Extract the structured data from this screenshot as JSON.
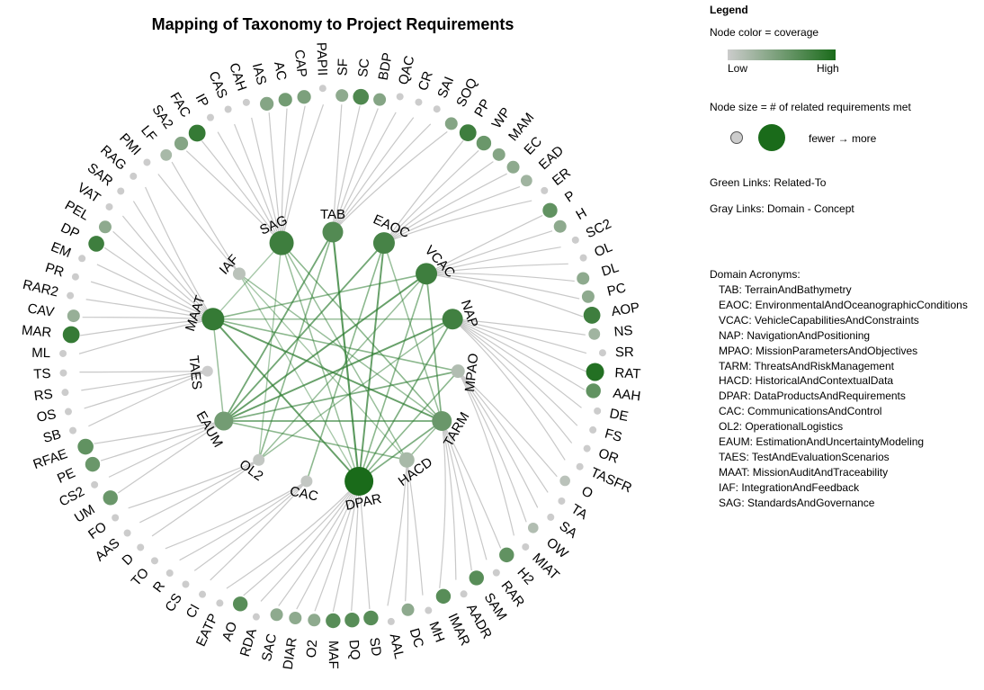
{
  "title": "Mapping of Taxonomy to Project Requirements",
  "legend": {
    "title": "Legend",
    "color_heading": "Node color = coverage",
    "low_label": "Low",
    "high_label": "High",
    "size_heading": "Node size = # of related requirements met",
    "size_arrow_text": "fewer → more",
    "green_links_text": "Green Links: Related-To",
    "gray_links_text": "Gray Links: Domain - Concept",
    "acronyms_heading": "Domain Acronyms:",
    "acronyms": [
      "TAB: TerrainAndBathymetry",
      "EAOC: EnvironmentalAndOceanographicConditions",
      "VCAC: VehicleCapabilitiesAndConstraints",
      "NAP: NavigationAndPositioning",
      "MPAO: MissionParametersAndObjectives",
      "TARM: ThreatsAndRiskManagement",
      "HACD: HistoricalAndContextualData",
      "DPAR: DataProductsAndRequirements",
      "CAC: CommunicationsAndControl",
      "OL2: OperationalLogistics",
      "EAUM: EstimationAndUncertaintyModeling",
      "TAES: TestAndEvaluationScenarios",
      "MAAT: MissionAuditAndTraceability",
      "IAF: IntegrationAndFeedback",
      "SAG: StandardsAndGovernance"
    ]
  },
  "colors": {
    "low": "#cccccc",
    "high": "#1a6b1a",
    "gray_link": "#c8c8c8",
    "green_link": "#2e7d32"
  },
  "domains": [
    {
      "id": "TAB",
      "coverage": 0.68,
      "size": 0.55
    },
    {
      "id": "EAOC",
      "coverage": 0.75,
      "size": 0.6
    },
    {
      "id": "VCAC",
      "coverage": 0.8,
      "size": 0.6
    },
    {
      "id": "NAP",
      "coverage": 0.78,
      "size": 0.55
    },
    {
      "id": "MPAO",
      "coverage": 0.15,
      "size": 0.15
    },
    {
      "id": "TARM",
      "coverage": 0.55,
      "size": 0.5
    },
    {
      "id": "HACD",
      "coverage": 0.2,
      "size": 0.25
    },
    {
      "id": "DPAR",
      "coverage": 1.0,
      "size": 1.0
    },
    {
      "id": "CAC",
      "coverage": 0.05,
      "size": 0.05
    },
    {
      "id": "OL2",
      "coverage": 0.05,
      "size": 0.05
    },
    {
      "id": "EAUM",
      "coverage": 0.5,
      "size": 0.45
    },
    {
      "id": "TAES",
      "coverage": 0.0,
      "size": 0.0
    },
    {
      "id": "MAAT",
      "coverage": 0.85,
      "size": 0.65
    },
    {
      "id": "IAF",
      "coverage": 0.1,
      "size": 0.1
    },
    {
      "id": "SAG",
      "coverage": 0.8,
      "size": 0.75
    }
  ],
  "concepts": [
    {
      "domain": "TAB",
      "items": [
        {
          "id": "SF",
          "coverage": 0.35,
          "size": 0.25
        },
        {
          "id": "SC",
          "coverage": 0.7,
          "size": 0.4
        },
        {
          "id": "BDP",
          "coverage": 0.4,
          "size": 0.25
        },
        {
          "id": "QAC",
          "coverage": 0,
          "size": 0
        },
        {
          "id": "CR",
          "coverage": 0,
          "size": 0
        },
        {
          "id": "SAI",
          "coverage": 0,
          "size": 0
        },
        {
          "id": "SOQ",
          "coverage": 0.4,
          "size": 0.25
        }
      ]
    },
    {
      "domain": "EAOC",
      "items": [
        {
          "id": "PP",
          "coverage": 0.8,
          "size": 0.45
        },
        {
          "id": "WP",
          "coverage": 0.55,
          "size": 0.35
        },
        {
          "id": "MAM",
          "coverage": 0.4,
          "size": 0.25
        },
        {
          "id": "EC",
          "coverage": 0.35,
          "size": 0.25
        },
        {
          "id": "EAD",
          "coverage": 0.25,
          "size": 0.2
        },
        {
          "id": "ER",
          "coverage": 0,
          "size": 0
        }
      ]
    },
    {
      "domain": "VCAC",
      "items": [
        {
          "id": "P",
          "coverage": 0.6,
          "size": 0.35
        },
        {
          "id": "H",
          "coverage": 0.35,
          "size": 0.25
        },
        {
          "id": "SC2",
          "coverage": 0,
          "size": 0
        },
        {
          "id": "OL",
          "coverage": 0,
          "size": 0
        },
        {
          "id": "DL",
          "coverage": 0.35,
          "size": 0.25
        },
        {
          "id": "PC",
          "coverage": 0.35,
          "size": 0.25
        },
        {
          "id": "AOP",
          "coverage": 0.8,
          "size": 0.45
        }
      ]
    },
    {
      "domain": "NAP",
      "items": [
        {
          "id": "NS",
          "coverage": 0.25,
          "size": 0.2
        },
        {
          "id": "SR",
          "coverage": 0,
          "size": 0
        },
        {
          "id": "RAT",
          "coverage": 0.95,
          "size": 0.5
        },
        {
          "id": "AAH",
          "coverage": 0.6,
          "size": 0.35
        },
        {
          "id": "DE",
          "coverage": 0,
          "size": 0
        },
        {
          "id": "FS",
          "coverage": 0,
          "size": 0
        },
        {
          "id": "OR",
          "coverage": 0,
          "size": 0
        },
        {
          "id": "TASFR",
          "coverage": 0,
          "size": 0
        }
      ]
    },
    {
      "domain": "MPAO",
      "items": [
        {
          "id": "O",
          "coverage": 0.1,
          "size": 0.15
        },
        {
          "id": "TA",
          "coverage": 0,
          "size": 0
        },
        {
          "id": "SA",
          "coverage": 0,
          "size": 0
        },
        {
          "id": "OW",
          "coverage": 0.15,
          "size": 0.15
        },
        {
          "id": "MIAT",
          "coverage": 0,
          "size": 0
        }
      ]
    },
    {
      "domain": "TARM",
      "items": [
        {
          "id": "H2",
          "coverage": 0.6,
          "size": 0.35
        },
        {
          "id": "RAR",
          "coverage": 0,
          "size": 0
        },
        {
          "id": "SAM",
          "coverage": 0.65,
          "size": 0.35
        },
        {
          "id": "AADR",
          "coverage": 0,
          "size": 0
        },
        {
          "id": "IMAR",
          "coverage": 0.65,
          "size": 0.35
        }
      ]
    },
    {
      "domain": "HACD",
      "items": [
        {
          "id": "MH",
          "coverage": 0,
          "size": 0
        },
        {
          "id": "DC",
          "coverage": 0.35,
          "size": 0.25
        },
        {
          "id": "AAL",
          "coverage": 0,
          "size": 0
        }
      ]
    },
    {
      "domain": "DPAR",
      "items": [
        {
          "id": "SD",
          "coverage": 0.65,
          "size": 0.35
        },
        {
          "id": "DQ",
          "coverage": 0.65,
          "size": 0.35
        },
        {
          "id": "MAF",
          "coverage": 0.65,
          "size": 0.35
        },
        {
          "id": "O2",
          "coverage": 0.35,
          "size": 0.25
        },
        {
          "id": "DIAR",
          "coverage": 0.35,
          "size": 0.25
        },
        {
          "id": "SAC",
          "coverage": 0.35,
          "size": 0.25
        },
        {
          "id": "RDA",
          "coverage": 0,
          "size": 0
        },
        {
          "id": "AO",
          "coverage": 0.65,
          "size": 0.35
        },
        {
          "id": "EATP",
          "coverage": 0,
          "size": 0
        }
      ]
    },
    {
      "domain": "CAC",
      "items": [
        {
          "id": "CI",
          "coverage": 0,
          "size": 0
        },
        {
          "id": "CS",
          "coverage": 0,
          "size": 0
        },
        {
          "id": "R",
          "coverage": 0,
          "size": 0
        },
        {
          "id": "TO",
          "coverage": 0,
          "size": 0
        }
      ]
    },
    {
      "domain": "OL2",
      "items": [
        {
          "id": "D",
          "coverage": 0,
          "size": 0
        },
        {
          "id": "AAS",
          "coverage": 0,
          "size": 0
        },
        {
          "id": "FO",
          "coverage": 0,
          "size": 0
        }
      ]
    },
    {
      "domain": "EAUM",
      "items": [
        {
          "id": "UM",
          "coverage": 0.55,
          "size": 0.35
        },
        {
          "id": "CS2",
          "coverage": 0,
          "size": 0
        },
        {
          "id": "PE",
          "coverage": 0.55,
          "size": 0.35
        },
        {
          "id": "RFAE",
          "coverage": 0.6,
          "size": 0.4
        }
      ]
    },
    {
      "domain": "TAES",
      "items": [
        {
          "id": "SB",
          "coverage": 0,
          "size": 0
        },
        {
          "id": "OS",
          "coverage": 0,
          "size": 0
        },
        {
          "id": "RS",
          "coverage": 0,
          "size": 0
        },
        {
          "id": "TS",
          "coverage": 0,
          "size": 0
        }
      ]
    },
    {
      "domain": "MAAT",
      "items": [
        {
          "id": "ML",
          "coverage": 0,
          "size": 0
        },
        {
          "id": "MAR",
          "coverage": 0.85,
          "size": 0.45
        },
        {
          "id": "CAV",
          "coverage": 0.3,
          "size": 0.25
        },
        {
          "id": "RAR2",
          "coverage": 0,
          "size": 0
        },
        {
          "id": "PR",
          "coverage": 0,
          "size": 0
        },
        {
          "id": "EM",
          "coverage": 0,
          "size": 0
        },
        {
          "id": "DP",
          "coverage": 0.8,
          "size": 0.4
        },
        {
          "id": "PEL",
          "coverage": 0.35,
          "size": 0.25
        },
        {
          "id": "VAT",
          "coverage": 0,
          "size": 0
        },
        {
          "id": "SAR",
          "coverage": 0,
          "size": 0
        },
        {
          "id": "RAG",
          "coverage": 0,
          "size": 0
        }
      ]
    },
    {
      "domain": "IAF",
      "items": [
        {
          "id": "PMI",
          "coverage": 0,
          "size": 0
        },
        {
          "id": "LF",
          "coverage": 0.2,
          "size": 0.2
        }
      ]
    },
    {
      "domain": "SAG",
      "items": [
        {
          "id": "SA2",
          "coverage": 0.4,
          "size": 0.3
        },
        {
          "id": "FAC",
          "coverage": 0.85,
          "size": 0.45
        },
        {
          "id": "IP",
          "coverage": 0,
          "size": 0
        },
        {
          "id": "CAS",
          "coverage": 0,
          "size": 0
        },
        {
          "id": "CAH",
          "coverage": 0,
          "size": 0
        },
        {
          "id": "IAS",
          "coverage": 0.4,
          "size": 0.3
        },
        {
          "id": "AC",
          "coverage": 0.5,
          "size": 0.3
        },
        {
          "id": "CAP",
          "coverage": 0.45,
          "size": 0.3
        },
        {
          "id": "PAPII",
          "coverage": 0,
          "size": 0
        }
      ]
    }
  ],
  "related_links": [
    [
      "MAAT",
      "VCAC",
      0.5
    ],
    [
      "MAAT",
      "TARM",
      0.8
    ],
    [
      "MAAT",
      "DPAR",
      0.8
    ],
    [
      "MAAT",
      "NAP",
      0.4
    ],
    [
      "MAAT",
      "EAUM",
      0.4
    ],
    [
      "MAAT",
      "MPAO",
      0.5
    ],
    [
      "SAG",
      "TARM",
      0.5
    ],
    [
      "SAG",
      "HACD",
      0.4
    ],
    [
      "SAG",
      "DPAR",
      0.4
    ],
    [
      "SAG",
      "OL2",
      0.3
    ],
    [
      "TAB",
      "DPAR",
      0.9
    ],
    [
      "TAB",
      "EAUM",
      0.7
    ],
    [
      "TAB",
      "OL2",
      0.5
    ],
    [
      "EAOC",
      "DPAR",
      0.8
    ],
    [
      "EAOC",
      "EAUM",
      0.7
    ],
    [
      "EAOC",
      "CAC",
      0.5
    ],
    [
      "VCAC",
      "EAUM",
      0.8
    ],
    [
      "VCAC",
      "TARM",
      0.6
    ],
    [
      "VCAC",
      "OL2",
      0.4
    ],
    [
      "VCAC",
      "DPAR",
      0.5
    ],
    [
      "NAP",
      "EAUM",
      0.8
    ],
    [
      "NAP",
      "DPAR",
      0.6
    ],
    [
      "NAP",
      "OL2",
      0.4
    ],
    [
      "EAUM",
      "TARM",
      0.7
    ],
    [
      "EAUM",
      "MPAO",
      0.6
    ],
    [
      "EAUM",
      "HACD",
      0.5
    ],
    [
      "DPAR",
      "TARM",
      0.6
    ],
    [
      "DPAR",
      "MPAO",
      0.5
    ],
    [
      "IAF",
      "TARM",
      0.4
    ],
    [
      "IAF",
      "HACD",
      0.3
    ],
    [
      "IAF",
      "DPAR",
      0.3
    ],
    [
      "TARM",
      "HACD",
      0.4
    ],
    [
      "SAG",
      "MAAT",
      0.3
    ],
    [
      "EAOC",
      "TARM",
      0.4
    ]
  ]
}
